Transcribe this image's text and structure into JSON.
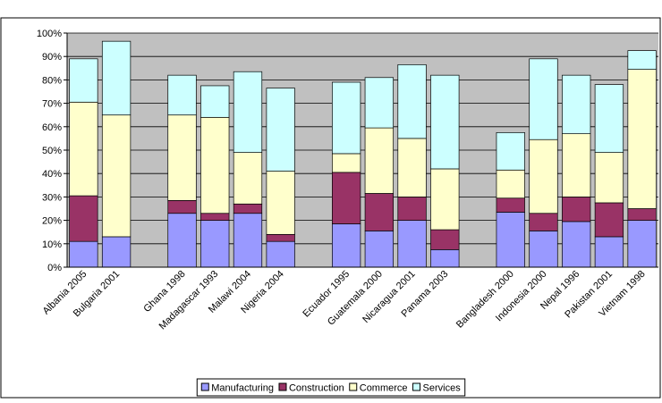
{
  "chart_data": {
    "type": "stacked_bar",
    "categories": [
      "Albania 2005",
      "Bulgaria 2001",
      null,
      "Ghana 1998",
      "Madagascar 1993",
      "Malawi 2004",
      "Nigeria 2004",
      null,
      "Ecuador 1995",
      "Guatemala 2000",
      "Nicaragua 2001",
      "Panama 2003",
      null,
      "Bangladesh 2000",
      "Indonesia 2000",
      "Nepal 1996",
      "Pakistan 2001",
      "Vietnam 1998"
    ],
    "series": [
      {
        "name": "Manufacturing",
        "color": "#9999ff",
        "values": [
          11,
          13,
          null,
          23,
          20,
          23,
          11,
          null,
          18.5,
          15.5,
          20,
          7.5,
          null,
          23.5,
          15.5,
          19.5,
          13,
          20
        ]
      },
      {
        "name": "Construction",
        "color": "#993366",
        "values": [
          19.5,
          0,
          null,
          5.5,
          3,
          4,
          3,
          null,
          22,
          16,
          10,
          8.5,
          null,
          6,
          7.5,
          10.5,
          14.5,
          5
        ]
      },
      {
        "name": "Commerce",
        "color": "#ffffcc",
        "values": [
          40,
          52,
          null,
          36.5,
          41,
          22,
          27,
          null,
          8,
          28,
          25,
          26,
          null,
          12,
          31.5,
          27,
          21.5,
          59.5
        ]
      },
      {
        "name": "Services",
        "color": "#ccffff",
        "values": [
          18.5,
          31.5,
          null,
          17,
          13.5,
          34.5,
          35.5,
          null,
          30.5,
          21.5,
          31.5,
          40,
          null,
          16,
          34.5,
          25,
          29,
          8
        ]
      }
    ],
    "ylim": [
      0,
      100
    ],
    "yticks": [
      {
        "value": 0,
        "label": "0%"
      },
      {
        "value": 10,
        "label": "10%"
      },
      {
        "value": 20,
        "label": "20%"
      },
      {
        "value": 30,
        "label": "30%"
      },
      {
        "value": 40,
        "label": "40%"
      },
      {
        "value": 50,
        "label": "50%"
      },
      {
        "value": 60,
        "label": "60%"
      },
      {
        "value": 70,
        "label": "70%"
      },
      {
        "value": 80,
        "label": "80%"
      },
      {
        "value": 90,
        "label": "90%"
      },
      {
        "value": 100,
        "label": "100%"
      }
    ],
    "grid": true,
    "legend": "bottom"
  }
}
